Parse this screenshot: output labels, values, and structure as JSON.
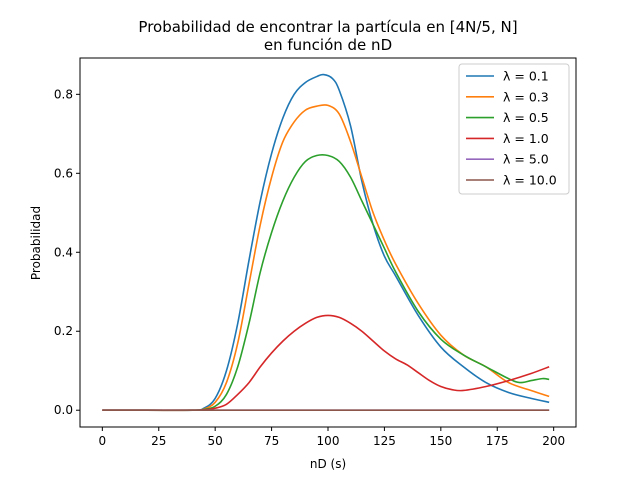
{
  "chart_data": {
    "type": "line",
    "title_line1": "Probabilidad de encontrar la partícula en [4N/5, N]",
    "title_line2": "en función de nD",
    "xlabel": "nD (s)",
    "ylabel": "Probabilidad",
    "xlim": [
      -9.9,
      209.9
    ],
    "ylim": [
      -0.0425,
      0.892
    ],
    "x_ticks": [
      0,
      25,
      50,
      75,
      100,
      125,
      150,
      175,
      200
    ],
    "y_ticks": [
      0.0,
      0.2,
      0.4,
      0.6,
      0.8
    ],
    "grid": false,
    "legend_position": "top-right",
    "series": [
      {
        "name": "λ = 0.1",
        "color": "#1f77b4",
        "points": [
          [
            0,
            0
          ],
          [
            20,
            0
          ],
          [
            40,
            0.0
          ],
          [
            45,
            0.005
          ],
          [
            50,
            0.03
          ],
          [
            55,
            0.1
          ],
          [
            60,
            0.22
          ],
          [
            65,
            0.38
          ],
          [
            70,
            0.53
          ],
          [
            75,
            0.65
          ],
          [
            80,
            0.74
          ],
          [
            85,
            0.8
          ],
          [
            90,
            0.83
          ],
          [
            95,
            0.845
          ],
          [
            98,
            0.85
          ],
          [
            102,
            0.84
          ],
          [
            105,
            0.81
          ],
          [
            110,
            0.72
          ],
          [
            115,
            0.58
          ],
          [
            120,
            0.47
          ],
          [
            125,
            0.39
          ],
          [
            130,
            0.34
          ],
          [
            140,
            0.24
          ],
          [
            150,
            0.16
          ],
          [
            160,
            0.11
          ],
          [
            170,
            0.07
          ],
          [
            180,
            0.045
          ],
          [
            190,
            0.03
          ],
          [
            198,
            0.02
          ]
        ]
      },
      {
        "name": "λ = 0.3",
        "color": "#ff7f0e",
        "points": [
          [
            0,
            0
          ],
          [
            20,
            0
          ],
          [
            40,
            0.0
          ],
          [
            45,
            0.003
          ],
          [
            50,
            0.02
          ],
          [
            55,
            0.07
          ],
          [
            60,
            0.17
          ],
          [
            65,
            0.32
          ],
          [
            70,
            0.47
          ],
          [
            75,
            0.59
          ],
          [
            80,
            0.68
          ],
          [
            85,
            0.73
          ],
          [
            90,
            0.76
          ],
          [
            95,
            0.77
          ],
          [
            100,
            0.772
          ],
          [
            105,
            0.75
          ],
          [
            110,
            0.68
          ],
          [
            115,
            0.59
          ],
          [
            120,
            0.5
          ],
          [
            125,
            0.43
          ],
          [
            130,
            0.37
          ],
          [
            140,
            0.27
          ],
          [
            150,
            0.19
          ],
          [
            160,
            0.14
          ],
          [
            170,
            0.11
          ],
          [
            180,
            0.07
          ],
          [
            190,
            0.05
          ],
          [
            198,
            0.035
          ]
        ]
      },
      {
        "name": "λ = 0.5",
        "color": "#2ca02c",
        "points": [
          [
            0,
            0
          ],
          [
            20,
            0
          ],
          [
            40,
            0.0
          ],
          [
            45,
            0.002
          ],
          [
            50,
            0.01
          ],
          [
            55,
            0.04
          ],
          [
            60,
            0.11
          ],
          [
            65,
            0.22
          ],
          [
            70,
            0.35
          ],
          [
            75,
            0.45
          ],
          [
            80,
            0.53
          ],
          [
            85,
            0.59
          ],
          [
            90,
            0.63
          ],
          [
            95,
            0.645
          ],
          [
            100,
            0.645
          ],
          [
            105,
            0.63
          ],
          [
            110,
            0.59
          ],
          [
            115,
            0.53
          ],
          [
            120,
            0.47
          ],
          [
            125,
            0.41
          ],
          [
            130,
            0.35
          ],
          [
            140,
            0.25
          ],
          [
            150,
            0.18
          ],
          [
            160,
            0.14
          ],
          [
            170,
            0.11
          ],
          [
            180,
            0.08
          ],
          [
            185,
            0.07
          ],
          [
            190,
            0.075
          ],
          [
            195,
            0.08
          ],
          [
            198,
            0.078
          ]
        ]
      },
      {
        "name": "λ = 1.0",
        "color": "#d62728",
        "points": [
          [
            0,
            0
          ],
          [
            20,
            0
          ],
          [
            40,
            0.0
          ],
          [
            45,
            0.001
          ],
          [
            50,
            0.005
          ],
          [
            55,
            0.015
          ],
          [
            60,
            0.04
          ],
          [
            65,
            0.07
          ],
          [
            70,
            0.11
          ],
          [
            75,
            0.145
          ],
          [
            80,
            0.175
          ],
          [
            85,
            0.2
          ],
          [
            90,
            0.22
          ],
          [
            95,
            0.235
          ],
          [
            100,
            0.24
          ],
          [
            105,
            0.235
          ],
          [
            110,
            0.22
          ],
          [
            115,
            0.2
          ],
          [
            120,
            0.175
          ],
          [
            125,
            0.15
          ],
          [
            130,
            0.13
          ],
          [
            135,
            0.115
          ],
          [
            140,
            0.095
          ],
          [
            145,
            0.075
          ],
          [
            150,
            0.06
          ],
          [
            155,
            0.052
          ],
          [
            160,
            0.05
          ],
          [
            170,
            0.06
          ],
          [
            180,
            0.075
          ],
          [
            190,
            0.093
          ],
          [
            198,
            0.11
          ]
        ]
      },
      {
        "name": "λ = 5.0",
        "color": "#9467bd",
        "points": [
          [
            0,
            0
          ],
          [
            50,
            0
          ],
          [
            100,
            0
          ],
          [
            150,
            0
          ],
          [
            198,
            0
          ]
        ]
      },
      {
        "name": "λ = 10.0",
        "color": "#8c564b",
        "points": [
          [
            0,
            0
          ],
          [
            50,
            0
          ],
          [
            100,
            0
          ],
          [
            150,
            0
          ],
          [
            198,
            0
          ]
        ]
      }
    ]
  }
}
